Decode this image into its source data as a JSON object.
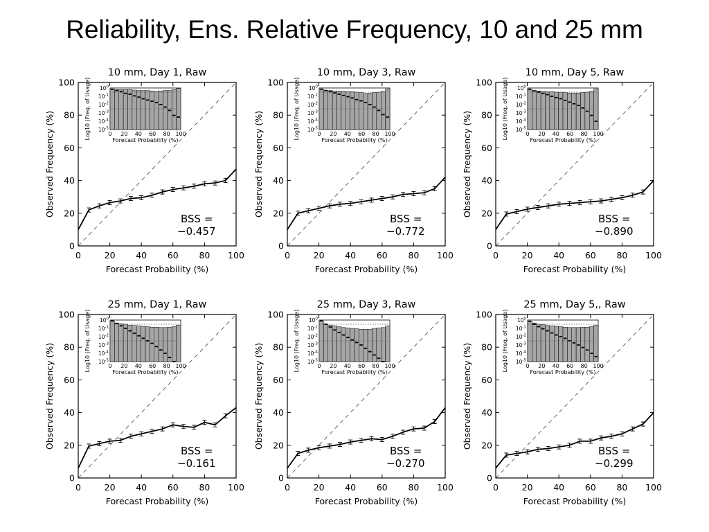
{
  "slide_title": "Reliability, Ens. Relative Frequency, 10 and 25 mm",
  "colors": {
    "line": "#000000",
    "diagonal": "#555555",
    "histogram_bar": "#a6a6a6",
    "inset_background": "#ffffff"
  },
  "chart_data": [
    {
      "type": "line",
      "title": "10 mm, Day 1, Raw",
      "xlabel": "Forecast Probability (%)",
      "ylabel": "Observed Frequency (%)",
      "xlim": [
        0,
        100
      ],
      "ylim": [
        0,
        100
      ],
      "xticks": [
        0,
        20,
        40,
        60,
        80,
        100
      ],
      "yticks": [
        0,
        20,
        40,
        60,
        80,
        100
      ],
      "grid": false,
      "reference_line": "diagonal",
      "x": [
        0,
        6.7,
        13.3,
        20,
        26.7,
        33.3,
        40,
        46.7,
        53.3,
        60,
        66.7,
        73.3,
        80,
        86.7,
        93.3,
        100
      ],
      "values": [
        10,
        22,
        24.5,
        26.5,
        27.5,
        29,
        29.5,
        31,
        33,
        34.5,
        35.5,
        36.5,
        38,
        38.5,
        40,
        47
      ],
      "annotation": {
        "line1": "BSS =",
        "line2": "−0.457"
      },
      "inset": {
        "type": "bar+line",
        "xlabel": "Forecast Probability (%)",
        "ylabel": "Log10 (Freq. of Usage)",
        "scale": "log",
        "xlim": [
          0,
          100
        ],
        "xticks": [
          0,
          20,
          40,
          60,
          80,
          100
        ],
        "yticks": [
          "10^0",
          "10^-1",
          "10^-2",
          "10^-3",
          "10^-4",
          "10^-5"
        ],
        "bars": [
          -0.15,
          -0.2,
          -0.2,
          -0.2,
          -0.2,
          -0.25,
          -0.3,
          -0.3,
          -0.3,
          -0.35,
          -0.4,
          -0.35,
          -0.3,
          -0.3,
          -0.2,
          -0.05
        ],
        "line": [
          -0.15,
          -0.3,
          -0.45,
          -0.65,
          -0.75,
          -0.95,
          -1.1,
          -1.3,
          -1.45,
          -1.6,
          -1.75,
          -2.0,
          -2.3,
          -2.7,
          -3.3,
          -3.5
        ]
      }
    },
    {
      "type": "line",
      "title": "10 mm, Day 3, Raw",
      "xlabel": "Forecast Probability (%)",
      "ylabel": "Observed Frequency (%)",
      "xlim": [
        0,
        100
      ],
      "ylim": [
        0,
        100
      ],
      "xticks": [
        0,
        20,
        40,
        60,
        80,
        100
      ],
      "yticks": [
        0,
        20,
        40,
        60,
        80,
        100
      ],
      "grid": false,
      "reference_line": "diagonal",
      "x": [
        0,
        6.7,
        13.3,
        20,
        26.7,
        33.3,
        40,
        46.7,
        53.3,
        60,
        66.7,
        73.3,
        80,
        86.7,
        93.3,
        100
      ],
      "values": [
        10,
        20,
        21.5,
        23,
        24.5,
        25.5,
        26,
        27,
        28,
        29,
        30,
        31.5,
        32,
        32.5,
        35,
        42
      ],
      "annotation": {
        "line1": "BSS =",
        "line2": "−0.772"
      },
      "inset": {
        "type": "bar+line",
        "xlabel": "Forecast Probability (%)",
        "ylabel": "Log10 (Freq. of Usage)",
        "scale": "log",
        "xlim": [
          0,
          100
        ],
        "xticks": [
          0,
          20,
          40,
          60,
          80,
          100
        ],
        "yticks": [
          "10^0",
          "10^-1",
          "10^-2",
          "10^-3",
          "10^-4",
          "10^-5"
        ],
        "bars": [
          -0.15,
          -0.3,
          -0.3,
          -0.35,
          -0.35,
          -0.4,
          -0.45,
          -0.45,
          -0.5,
          -0.55,
          -0.65,
          -0.6,
          -0.55,
          -0.5,
          -0.4,
          -0.1
        ],
        "line": [
          -0.15,
          -0.3,
          -0.45,
          -0.6,
          -0.75,
          -0.9,
          -1.05,
          -1.2,
          -1.4,
          -1.55,
          -1.75,
          -2.0,
          -2.3,
          -2.7,
          -3.2,
          -3.5
        ]
      }
    },
    {
      "type": "line",
      "title": "10 mm, Day 5, Raw",
      "xlabel": "Forecast Probability (%)",
      "ylabel": "Observed Frequency (%)",
      "xlim": [
        0,
        100
      ],
      "ylim": [
        0,
        100
      ],
      "xticks": [
        0,
        20,
        40,
        60,
        80,
        100
      ],
      "yticks": [
        0,
        20,
        40,
        60,
        80,
        100
      ],
      "grid": false,
      "reference_line": "diagonal",
      "x": [
        0,
        6.7,
        13.3,
        20,
        26.7,
        33.3,
        40,
        46.7,
        53.3,
        60,
        66.7,
        73.3,
        80,
        86.7,
        93.3,
        100
      ],
      "values": [
        10,
        19.5,
        21,
        22.5,
        23.5,
        24.5,
        25.5,
        26,
        26.5,
        27,
        27.5,
        28.5,
        29.5,
        31,
        33,
        40
      ],
      "annotation": {
        "line1": "BSS =",
        "line2": "−0.890"
      },
      "inset": {
        "type": "bar+line",
        "xlabel": "Forecast Probability (%)",
        "ylabel": "Log10 (Freq. of Usage)",
        "scale": "log",
        "xlim": [
          0,
          100
        ],
        "xticks": [
          0,
          20,
          40,
          60,
          80,
          100
        ],
        "yticks": [
          "10^0",
          "10^-1",
          "10^-2",
          "10^-3",
          "10^-4",
          "10^-5"
        ],
        "bars": [
          -0.15,
          -0.3,
          -0.35,
          -0.4,
          -0.45,
          -0.45,
          -0.5,
          -0.5,
          -0.55,
          -0.6,
          -0.6,
          -0.6,
          -0.55,
          -0.5,
          -0.4,
          -0.1
        ],
        "line": [
          -0.15,
          -0.35,
          -0.5,
          -0.65,
          -0.8,
          -1.0,
          -1.15,
          -1.3,
          -1.5,
          -1.7,
          -1.9,
          -2.1,
          -2.4,
          -2.8,
          -3.3,
          -4.0
        ]
      }
    },
    {
      "type": "line",
      "title": "25 mm, Day 1, Raw",
      "xlabel": "Forecast Probability (%)",
      "ylabel": "Observed Frequency (%)",
      "xlim": [
        0,
        100
      ],
      "ylim": [
        0,
        100
      ],
      "xticks": [
        0,
        20,
        40,
        60,
        80,
        100
      ],
      "yticks": [
        0,
        20,
        40,
        60,
        80,
        100
      ],
      "grid": false,
      "reference_line": "diagonal",
      "x": [
        0,
        6.7,
        13.3,
        20,
        26.7,
        33.3,
        40,
        46.7,
        53.3,
        60,
        66.7,
        73.3,
        80,
        86.7,
        93.3,
        100
      ],
      "values": [
        6,
        19.5,
        21,
        22.5,
        23,
        25.5,
        27,
        28.5,
        30,
        32.5,
        31.5,
        31,
        34,
        32.5,
        38,
        43
      ],
      "annotation": {
        "line1": "BSS =",
        "line2": "−0.161"
      },
      "inset": {
        "type": "bar+line",
        "xlabel": "Forecast Probability (%)",
        "ylabel": "Log10 (Freq. of Usage)",
        "scale": "log",
        "xlim": [
          0,
          100
        ],
        "xticks": [
          0,
          20,
          40,
          60,
          80,
          100
        ],
        "yticks": [
          "10^0",
          "10^-1",
          "10^-2",
          "10^-3",
          "10^-4",
          "10^-5"
        ],
        "bars": [
          -0.1,
          -0.35,
          -0.45,
          -0.5,
          -0.6,
          -0.65,
          -0.7,
          -0.75,
          -0.8,
          -0.85,
          -0.85,
          -0.9,
          -0.9,
          -0.85,
          -0.8,
          -0.6
        ],
        "line": [
          -0.1,
          -0.4,
          -0.7,
          -1.0,
          -1.3,
          -1.6,
          -1.9,
          -2.2,
          -2.5,
          -2.8,
          -3.2,
          -3.6,
          -4.0,
          -4.5,
          -5.0,
          -5.5
        ]
      }
    },
    {
      "type": "line",
      "title": "25 mm, Day 3, Raw",
      "xlabel": "Forecast Probability (%)",
      "ylabel": "Observed Frequency (%)",
      "xlim": [
        0,
        100
      ],
      "ylim": [
        0,
        100
      ],
      "xticks": [
        0,
        20,
        40,
        60,
        80,
        100
      ],
      "yticks": [
        0,
        20,
        40,
        60,
        80,
        100
      ],
      "grid": false,
      "reference_line": "diagonal",
      "x": [
        0,
        6.7,
        13.3,
        20,
        26.7,
        33.3,
        40,
        46.7,
        53.3,
        60,
        66.7,
        73.3,
        80,
        86.7,
        93.3,
        100
      ],
      "values": [
        6,
        15,
        17,
        18.5,
        19.5,
        20.5,
        22,
        23,
        24,
        23.5,
        25.5,
        28,
        30,
        30.5,
        34.5,
        43
      ],
      "annotation": {
        "line1": "BSS =",
        "line2": "−0.270"
      },
      "inset": {
        "type": "bar+line",
        "xlabel": "Forecast Probability (%)",
        "ylabel": "Log10 (Freq. of Usage)",
        "scale": "log",
        "xlim": [
          0,
          100
        ],
        "xticks": [
          0,
          20,
          40,
          60,
          80,
          100
        ],
        "yticks": [
          "10^0",
          "10^-1",
          "10^-2",
          "10^-3",
          "10^-4",
          "10^-5"
        ],
        "bars": [
          -0.1,
          -0.5,
          -0.6,
          -0.7,
          -0.8,
          -0.9,
          -0.95,
          -1.0,
          -1.05,
          -1.1,
          -1.1,
          -1.1,
          -1.0,
          -0.95,
          -0.9,
          -0.7
        ],
        "line": [
          -0.1,
          -0.5,
          -0.85,
          -1.2,
          -1.5,
          -1.8,
          -2.1,
          -2.4,
          -2.7,
          -3.0,
          -3.4,
          -3.8,
          -4.2,
          -4.6,
          -5.0,
          -5.5
        ]
      }
    },
    {
      "type": "line",
      "title": "25 mm, Day 5,, Raw",
      "xlabel": "Forecast Probability (%)",
      "ylabel": "Observed Frequency (%)",
      "xlim": [
        0,
        100
      ],
      "ylim": [
        0,
        100
      ],
      "xticks": [
        0,
        20,
        40,
        60,
        80,
        100
      ],
      "yticks": [
        0,
        20,
        40,
        60,
        80,
        100
      ],
      "grid": false,
      "reference_line": "diagonal",
      "x": [
        0,
        6.7,
        13.3,
        20,
        26.7,
        33.3,
        40,
        46.7,
        53.3,
        60,
        66.7,
        73.3,
        80,
        86.7,
        93.3,
        100
      ],
      "values": [
        6,
        14,
        15,
        16,
        17.5,
        18,
        19,
        20,
        22.5,
        22.5,
        24.5,
        25.5,
        27,
        30,
        33,
        40
      ],
      "annotation": {
        "line1": "BSS =",
        "line2": "−0.299"
      },
      "inset": {
        "type": "bar+line",
        "xlabel": "Forecast Probability (%)",
        "ylabel": "Log10 (Freq. of Usage)",
        "scale": "log",
        "xlim": [
          0,
          100
        ],
        "xticks": [
          0,
          20,
          40,
          60,
          80,
          100
        ],
        "yticks": [
          "10^0",
          "10^-1",
          "10^-2",
          "10^-3",
          "10^-4",
          "10^-5"
        ],
        "bars": [
          -0.15,
          -0.35,
          -0.5,
          -0.55,
          -0.65,
          -0.7,
          -0.75,
          -0.8,
          -0.85,
          -0.9,
          -0.9,
          -0.9,
          -0.85,
          -0.85,
          -0.8,
          -0.6
        ],
        "line": [
          -0.15,
          -0.5,
          -0.8,
          -1.05,
          -1.3,
          -1.55,
          -1.8,
          -2.0,
          -2.2,
          -2.5,
          -2.75,
          -3.0,
          -3.3,
          -3.6,
          -4.0,
          -4.4
        ]
      }
    }
  ]
}
